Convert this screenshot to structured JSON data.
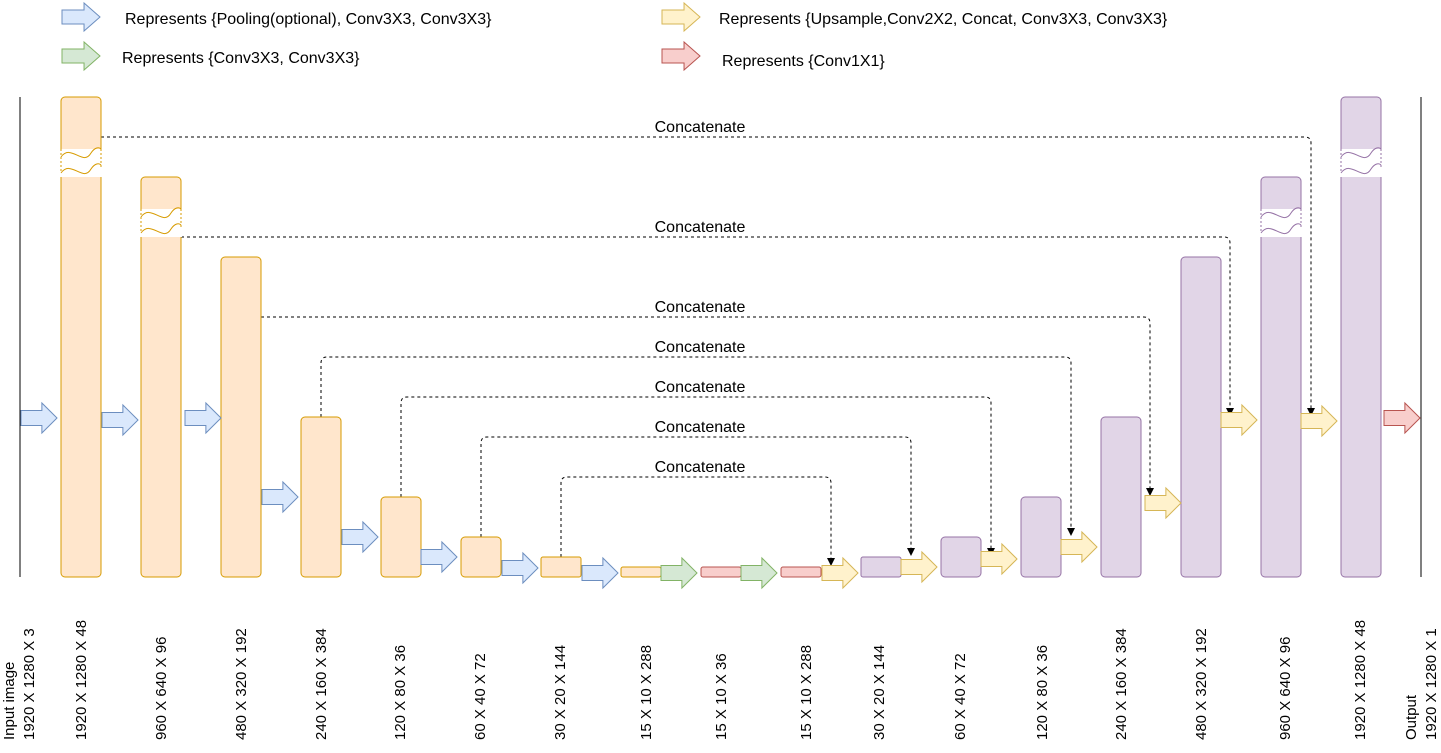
{
  "legend": {
    "blue_label": "Represents {Pooling(optional), Conv3X3, Conv3X3}",
    "green_label": "Represents {Conv3X3, Conv3X3}",
    "yellow_label": "Represents {Upsample,Conv2X2, Concat, Conv3X3, Conv3X3}",
    "red_label": "Represents {Conv1X1}"
  },
  "colors": {
    "encoder_fill": "#ffe6cc",
    "encoder_stroke": "#d79b00",
    "decoder_fill": "#e1d5e7",
    "decoder_stroke": "#9673a6",
    "bottleneck_fill": "#f8cecc",
    "bottleneck_stroke": "#b85450",
    "blue_fill": "#dae8fc",
    "blue_stroke": "#6c8ebf",
    "green_fill": "#d5e8d4",
    "green_stroke": "#82b366",
    "yellow_fill": "#fff2cc",
    "yellow_stroke": "#d6b656",
    "red_fill": "#f8cecc",
    "red_stroke": "#b85450"
  },
  "concat_label": "Concatenate",
  "input_label": "Input image",
  "input_dims": "1920 X 1280 X 3",
  "output_label": "Output",
  "output_dims": "1920 X 1280 X 1",
  "dims": [
    "1920 X 1280 X 48",
    "960 X 640 X 96",
    "480 X 320 X 192",
    "240 X 160 X 384",
    "120 X 80 X 36",
    "60 X 40 X 72",
    "30 X 20 X 144",
    "15 X 10 X 288",
    "15 X 10 X 36",
    "15 X 10 X 288",
    "30 X 20 X 144",
    "60 X 40 X 72",
    "120 X 80 X 36",
    "240 X 160 X 384",
    "480 X 320 X 192",
    "960 X 640 X 96",
    "1920 X 1280 X 48"
  ]
}
